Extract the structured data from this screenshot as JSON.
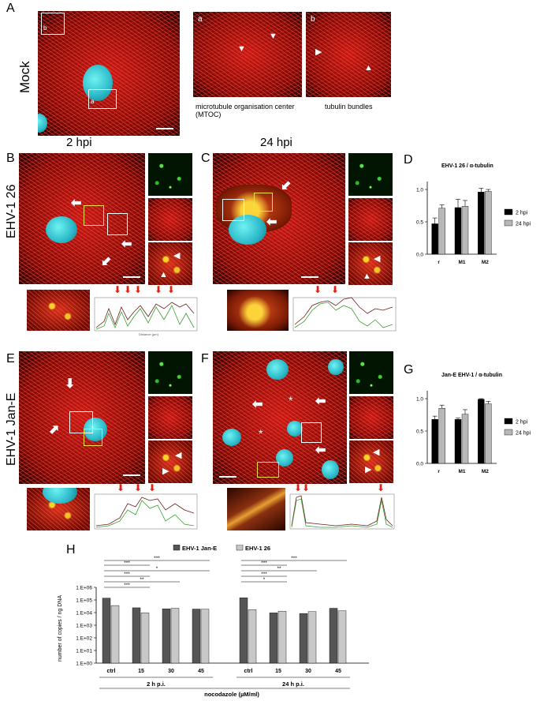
{
  "panels": {
    "A": {
      "letter": "A",
      "side_label": "Mock",
      "inset_a_label": "a",
      "inset_b_label": "b",
      "caption_a": "microtubule organisation center (MTOC)",
      "caption_b": "tubulin bundles"
    },
    "B": {
      "letter": "B",
      "col_title": "2 hpi",
      "row_label": "EHV-1 26"
    },
    "C": {
      "letter": "C",
      "col_title": "24 hpi"
    },
    "D": {
      "letter": "D"
    },
    "E": {
      "letter": "E",
      "row_label": "EHV-1 Jan-E"
    },
    "F": {
      "letter": "F"
    },
    "G": {
      "letter": "G"
    },
    "H": {
      "letter": "H"
    }
  },
  "chart_data": [
    {
      "id": "D",
      "type": "bar",
      "title": "EHV-1 26 / α-tubulin",
      "categories": [
        "r",
        "M1",
        "M2"
      ],
      "series": [
        {
          "name": "2 hpi",
          "color": "#000000",
          "values": [
            0.47,
            0.72,
            0.96
          ],
          "errors": [
            0.09,
            0.13,
            0.06
          ]
        },
        {
          "name": "24 hpi",
          "color": "#b8b8b8",
          "values": [
            0.71,
            0.74,
            0.97
          ],
          "errors": [
            0.05,
            0.09,
            0.03
          ]
        }
      ],
      "ylim": [
        0,
        1.0
      ],
      "yticks": [
        "0.0",
        "0.5",
        "1.0"
      ],
      "legend": "right"
    },
    {
      "id": "G",
      "type": "bar",
      "title": "Jan-E  EHV-1 / α-tubulin",
      "categories": [
        "r",
        "M1",
        "M2"
      ],
      "series": [
        {
          "name": "2 hpi",
          "color": "#000000",
          "values": [
            0.68,
            0.68,
            0.99
          ],
          "errors": [
            0.05,
            0.02,
            0.01
          ]
        },
        {
          "name": "24 hpi",
          "color": "#b8b8b8",
          "values": [
            0.85,
            0.76,
            0.92
          ],
          "errors": [
            0.05,
            0.07,
            0.04
          ]
        }
      ],
      "ylim": [
        0,
        1.0
      ],
      "yticks": [
        "0.0",
        "0.5",
        "1.0"
      ],
      "legend": "right"
    },
    {
      "id": "H",
      "type": "bar",
      "ylabel": "number of copies / ng DNA",
      "xlabel": "nocodazole (µM/ml)",
      "log_scale": true,
      "yticks": [
        "1.E+00",
        "1.E+01",
        "1.E+02",
        "1.E+03",
        "1.E+04",
        "1.E+05",
        "1.E+06"
      ],
      "categories": [
        "ctrl",
        "15",
        "30",
        "45",
        "ctrl",
        "15",
        "30",
        "45"
      ],
      "groups": [
        "2 h p.i.",
        "24 h p.i."
      ],
      "series": [
        {
          "name": "EHV-1 Jan-E",
          "color": "#555555",
          "values": [
            140000,
            24000,
            20000,
            19000,
            150000,
            9500,
            8500,
            22000
          ]
        },
        {
          "name": "EHV-1 26",
          "color": "#c8c8c8",
          "values": [
            36000,
            9500,
            22000,
            18500,
            17000,
            13000,
            12000,
            14000
          ]
        }
      ],
      "significance": [
        "***",
        "***",
        "*",
        "***",
        "**",
        "***",
        "***",
        "***",
        "**",
        "***",
        "*"
      ]
    }
  ]
}
